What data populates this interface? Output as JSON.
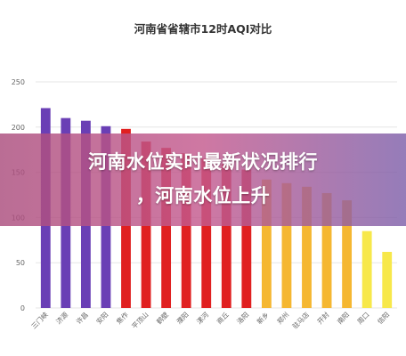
{
  "chart_data": {
    "type": "bar",
    "title": "河南省省辖市12时AQI对比",
    "xlabel": "",
    "ylabel": "",
    "ylim": [
      0,
      250
    ],
    "yticks": [
      0,
      50,
      100,
      150,
      200,
      250
    ],
    "grid": true,
    "categories": [
      "三门峡",
      "济源",
      "许昌",
      "安阳",
      "焦作",
      "平顶山",
      "鹤壁",
      "濮阳",
      "漯河",
      "商丘",
      "洛阳",
      "新乡",
      "郑州",
      "驻马店",
      "开封",
      "南阳",
      "周口",
      "信阳"
    ],
    "values": [
      221,
      210,
      207,
      201,
      198,
      184,
      177,
      171,
      165,
      159,
      153,
      142,
      138,
      134,
      127,
      119,
      85,
      62
    ],
    "bar_colors": [
      "#6a3fb5",
      "#6a3fb5",
      "#6a3fb5",
      "#6a3fb5",
      "#e02020",
      "#e02020",
      "#e02020",
      "#e02020",
      "#e02020",
      "#e02020",
      "#e02020",
      "#f5b731",
      "#f5b731",
      "#f5b731",
      "#f5b731",
      "#f5b731",
      "#f7e84a",
      "#f7e84a"
    ]
  },
  "banner": {
    "line1": "河南水位实时最新状况排行",
    "line2": "，河南水位上升"
  },
  "colors": {
    "purple": "#6a3fb5",
    "red": "#e02020",
    "orange": "#f5b731",
    "yellow": "#f7e84a",
    "grid": "#e6e6e6",
    "axis_text": "#666666"
  }
}
